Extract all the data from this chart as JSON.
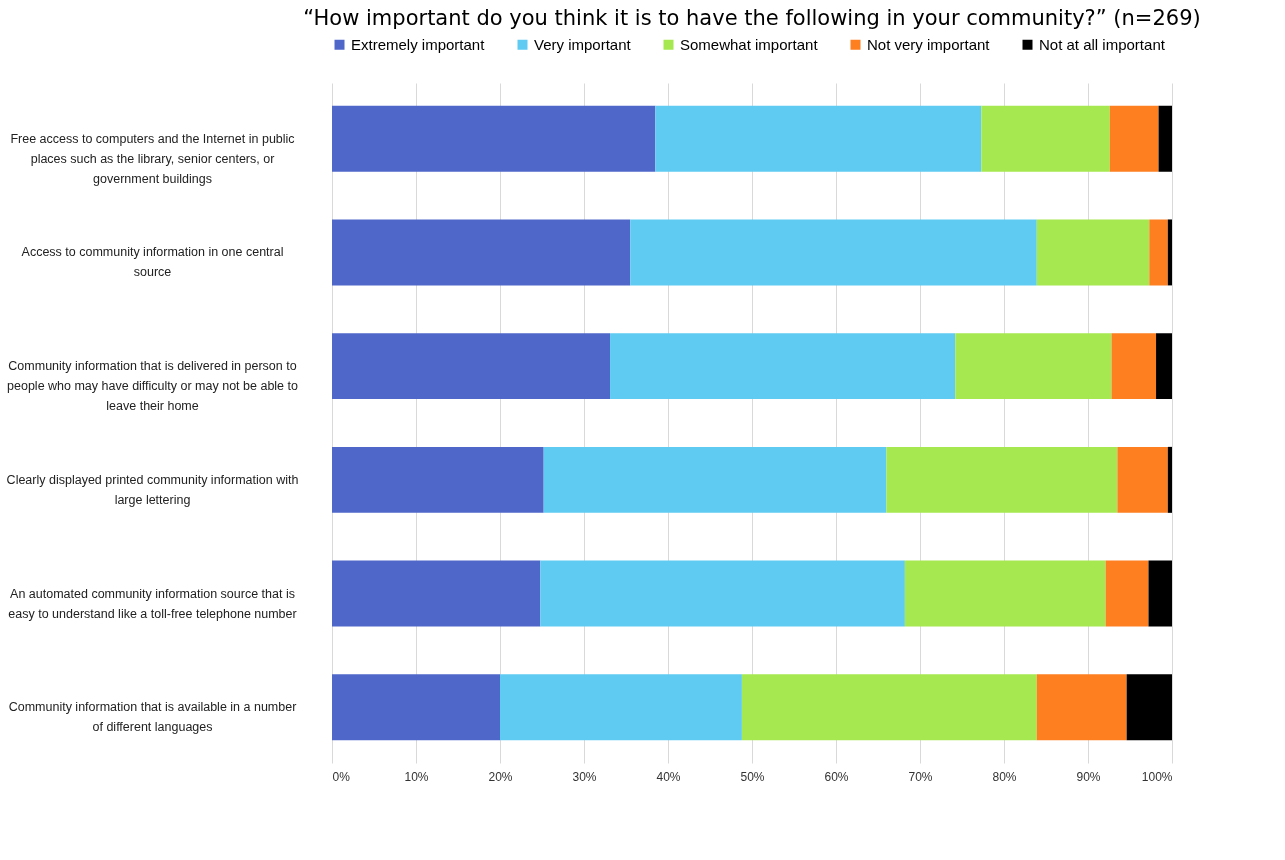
{
  "chart_data": {
    "type": "bar",
    "orientation": "horizontal",
    "stacked": true,
    "title": "“How important do you think it is to have the following in your community?” (n=269)",
    "categories": [
      "Free access to computers and the Internet in public places such as the library, senior centers, or government buildings",
      "Access to community information in one central source",
      "Community information that is delivered in person to people who may have difficulty or may not be able to leave their home",
      "Clearly displayed printed community information with large lettering",
      "An automated community information source that is easy to understand like a toll-free telephone number",
      "Community information that is available in a number of different languages"
    ],
    "series": [
      {
        "name": "Extremely important",
        "color": "#4f67c9",
        "values": [
          38.5,
          35.5,
          33.1,
          25.2,
          24.8,
          20.0
        ]
      },
      {
        "name": "Very important",
        "color": "#5fcbf2",
        "values": [
          38.8,
          48.4,
          41.1,
          40.8,
          43.4,
          28.8
        ]
      },
      {
        "name": "Somewhat important",
        "color": "#a6e84f",
        "values": [
          15.3,
          13.4,
          18.6,
          27.5,
          23.9,
          35.1
        ]
      },
      {
        "name": "Not very important",
        "color": "#fd7f20",
        "values": [
          5.8,
          2.2,
          5.3,
          6.0,
          5.1,
          10.7
        ]
      },
      {
        "name": "Not at all important",
        "color": "#000000",
        "values": [
          1.6,
          0.5,
          1.9,
          0.5,
          2.8,
          5.4
        ]
      }
    ],
    "xlim": [
      0,
      100
    ],
    "xticks": [
      {
        "value": 0,
        "label": "0%"
      },
      {
        "value": 10,
        "label": "10%"
      },
      {
        "value": 20,
        "label": "20%"
      },
      {
        "value": 30,
        "label": "30%"
      },
      {
        "value": 40,
        "label": "40%"
      },
      {
        "value": 50,
        "label": "50%"
      },
      {
        "value": 60,
        "label": "60%"
      },
      {
        "value": 70,
        "label": "70%"
      },
      {
        "value": 80,
        "label": "80%"
      },
      {
        "value": 90,
        "label": "90%"
      },
      {
        "value": 100,
        "label": "100%"
      }
    ],
    "grid": "x",
    "legend": "top"
  }
}
